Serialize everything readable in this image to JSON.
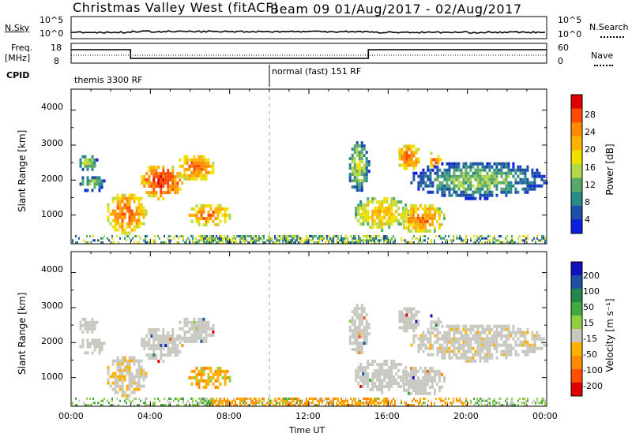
{
  "header": {
    "site_title": "Christmas Valley West (fitACF)",
    "beam_date": "Beam 09 01/Aug/2017 - 02/Aug/2017"
  },
  "top_panels": {
    "nsky_label": "N.Sky",
    "nsky_ticks": [
      "10^5",
      "10^0"
    ],
    "nsearch_ticks": [
      "10^5",
      "10^0"
    ],
    "nsearch_label": "N.Search",
    "freq_label_1": "Freq.",
    "freq_label_2": "[MHz]",
    "freq_ticks": [
      "18",
      "8"
    ],
    "nave_ticks": [
      "60",
      "0"
    ],
    "nave_label": "Nave",
    "cpid_label": "CPID",
    "cpid_segments": [
      "themis 3300 RF",
      "normal (fast) 151 RF"
    ]
  },
  "axes": {
    "xlabel": "Time UT",
    "ylabel": "Slant Range [km]",
    "x_ticks": [
      "00:00",
      "04:00",
      "08:00",
      "12:00",
      "16:00",
      "20:00",
      "00:00"
    ],
    "y_ticks": [
      "4000",
      "3000",
      "2000",
      "1000"
    ]
  },
  "colorbars": {
    "power": {
      "label": "Power [dB]",
      "ticks": [
        "28",
        "24",
        "20",
        "16",
        "12",
        "8",
        "4"
      ],
      "colors": [
        "#dd0000",
        "#ff4a00",
        "#ff8a00",
        "#ffb000",
        "#f0e000",
        "#b0d84a",
        "#5aa86a",
        "#2a8a8a",
        "#1c4fa8",
        "#0a1ee0"
      ]
    },
    "velocity": {
      "label": "Velocity [m s⁻¹]",
      "ticks": [
        "200",
        "100",
        "50",
        "15",
        "-15",
        "-50",
        "-100",
        "-200"
      ],
      "colors": [
        "#1010c0",
        "#2050a0",
        "#208848",
        "#40a840",
        "#90d040",
        "#c8c8c0",
        "#ffb000",
        "#ff8a00",
        "#ff5000",
        "#e00000"
      ]
    }
  },
  "chart_data": {
    "type": "heatmap",
    "x_range_hours": [
      0,
      24
    ],
    "y_range_km": [
      180,
      4600
    ],
    "power_colorbar_range_db": [
      0,
      30
    ],
    "velocity_colorbar_range_ms": [
      -250,
      250
    ],
    "cpid_change_hour": 10,
    "nave_before_after": [
      40,
      60
    ],
    "freq_switch_hours": [
      3,
      15
    ],
    "power_echo_regions": [
      {
        "t0": 0.3,
        "t1": 1.3,
        "r0": 2300,
        "r1": 2800,
        "db": 14
      },
      {
        "t0": 0.3,
        "t1": 1.7,
        "r0": 1700,
        "r1": 2200,
        "db": 12
      },
      {
        "t0": 1.7,
        "t1": 3.8,
        "r0": 500,
        "r1": 1700,
        "db": 24
      },
      {
        "t0": 3.4,
        "t1": 5.6,
        "r0": 1500,
        "r1": 2500,
        "db": 27
      },
      {
        "t0": 5.2,
        "t1": 7.3,
        "r0": 2000,
        "r1": 2800,
        "db": 24
      },
      {
        "t0": 5.8,
        "t1": 8.0,
        "r0": 700,
        "r1": 1400,
        "db": 23
      },
      {
        "t0": 13.9,
        "t1": 15.0,
        "r0": 1700,
        "r1": 3200,
        "db": 14
      },
      {
        "t0": 14.2,
        "t1": 17.0,
        "r0": 600,
        "r1": 1600,
        "db": 20
      },
      {
        "t0": 16.4,
        "t1": 17.6,
        "r0": 2300,
        "r1": 3100,
        "db": 24
      },
      {
        "t0": 18.0,
        "t1": 18.6,
        "r0": 2300,
        "r1": 2900,
        "db": 24
      },
      {
        "t0": 16.5,
        "t1": 18.8,
        "r0": 500,
        "r1": 1400,
        "db": 23
      },
      {
        "t0": 17.0,
        "t1": 24.0,
        "r0": 1500,
        "r1": 2600,
        "db": 12
      }
    ],
    "ground_scatter_band_km": [
      180,
      400
    ]
  }
}
